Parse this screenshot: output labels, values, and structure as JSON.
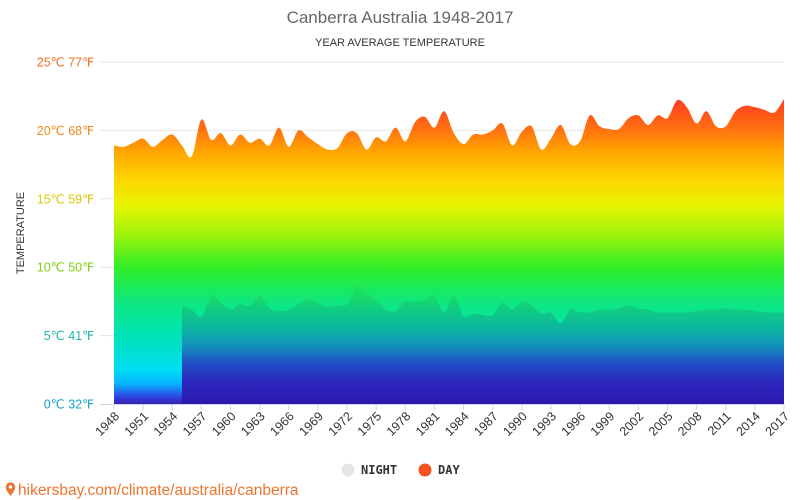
{
  "chart_data": {
    "type": "area",
    "title": "Canberra Australia 1948-2017",
    "subtitle": "YEAR AVERAGE TEMPERATURE",
    "ylabel": "TEMPERATURE",
    "xlim": [
      1948,
      2017
    ],
    "ylim": [
      0,
      25
    ],
    "grid": true,
    "legend": {
      "position": "bottom"
    },
    "y_ticks": [
      {
        "value": 0,
        "label": "0℃ 32℉",
        "color": "#17a3c7"
      },
      {
        "value": 5,
        "label": "5℃ 41℉",
        "color": "#1fb6ac"
      },
      {
        "value": 10,
        "label": "10℃ 50℉",
        "color": "#83cd12"
      },
      {
        "value": 15,
        "label": "15℃ 59℉",
        "color": "#dcc800"
      },
      {
        "value": 20,
        "label": "20℃ 68℉",
        "color": "#f3891c"
      },
      {
        "value": 25,
        "label": "25℃ 77℉",
        "color": "#f2701e"
      }
    ],
    "x_ticks": [
      "1948",
      "1951",
      "1954",
      "1957",
      "1960",
      "1963",
      "1966",
      "1969",
      "1972",
      "1975",
      "1978",
      "1981",
      "1984",
      "1987",
      "1990",
      "1993",
      "1996",
      "1999",
      "2002",
      "2005",
      "2008",
      "2011",
      "2014",
      "2017"
    ],
    "x": [
      1948,
      1949,
      1950,
      1951,
      1952,
      1953,
      1954,
      1955,
      1956,
      1957,
      1958,
      1959,
      1960,
      1961,
      1962,
      1963,
      1964,
      1965,
      1966,
      1967,
      1968,
      1969,
      1970,
      1971,
      1972,
      1973,
      1974,
      1975,
      1976,
      1977,
      1978,
      1979,
      1980,
      1981,
      1982,
      1983,
      1984,
      1985,
      1986,
      1987,
      1988,
      1989,
      1990,
      1991,
      1992,
      1993,
      1994,
      1995,
      1996,
      1997,
      1998,
      1999,
      2000,
      2001,
      2002,
      2003,
      2004,
      2005,
      2006,
      2007,
      2008,
      2009,
      2010,
      2011,
      2012,
      2013,
      2014,
      2015,
      2016,
      2017
    ],
    "series": [
      {
        "name": "NIGHT",
        "color": "#e6e6e6",
        "values": [
          null,
          null,
          null,
          null,
          null,
          null,
          null,
          7.2,
          6.9,
          6.4,
          7.9,
          7.4,
          6.9,
          7.3,
          7.2,
          7.9,
          7.0,
          6.8,
          6.9,
          7.3,
          7.7,
          7.4,
          7.1,
          7.2,
          7.3,
          8.6,
          8.1,
          7.6,
          6.9,
          6.8,
          7.5,
          7.5,
          7.6,
          7.9,
          6.7,
          7.9,
          6.4,
          6.6,
          6.5,
          6.5,
          7.4,
          6.9,
          7.5,
          7.2,
          6.6,
          6.7,
          5.9,
          6.9,
          6.7,
          6.7,
          6.9,
          6.9,
          7.0,
          7.2,
          7.0,
          6.9,
          6.7,
          6.7,
          6.7,
          6.7,
          6.8,
          6.9,
          6.9,
          7.0,
          6.9,
          6.9,
          6.8,
          6.7,
          6.7,
          6.7
        ]
      },
      {
        "name": "DAY",
        "color": "#f4511e",
        "values": [
          18.9,
          18.8,
          19.1,
          19.4,
          18.8,
          19.3,
          19.7,
          18.9,
          18.1,
          20.8,
          19.3,
          19.8,
          18.9,
          19.7,
          19.1,
          19.4,
          18.9,
          20.2,
          18.8,
          20.0,
          19.5,
          19.0,
          18.6,
          18.7,
          19.8,
          19.8,
          18.6,
          19.5,
          19.2,
          20.2,
          19.2,
          20.6,
          21.0,
          20.2,
          21.4,
          19.8,
          19.0,
          19.7,
          19.7,
          20.0,
          20.5,
          18.9,
          19.9,
          20.3,
          18.6,
          19.4,
          20.4,
          19.0,
          19.2,
          21.1,
          20.3,
          20.1,
          20.1,
          20.9,
          21.1,
          20.4,
          21.1,
          20.9,
          22.2,
          21.7,
          20.5,
          21.4,
          20.3,
          20.3,
          21.4,
          21.8,
          21.7,
          21.5,
          21.3,
          22.3
        ]
      }
    ]
  },
  "footer": {
    "icon": "map-pin-icon",
    "text": "hikersbay.com/climate/australia/canberra",
    "color": "#ec7530"
  }
}
